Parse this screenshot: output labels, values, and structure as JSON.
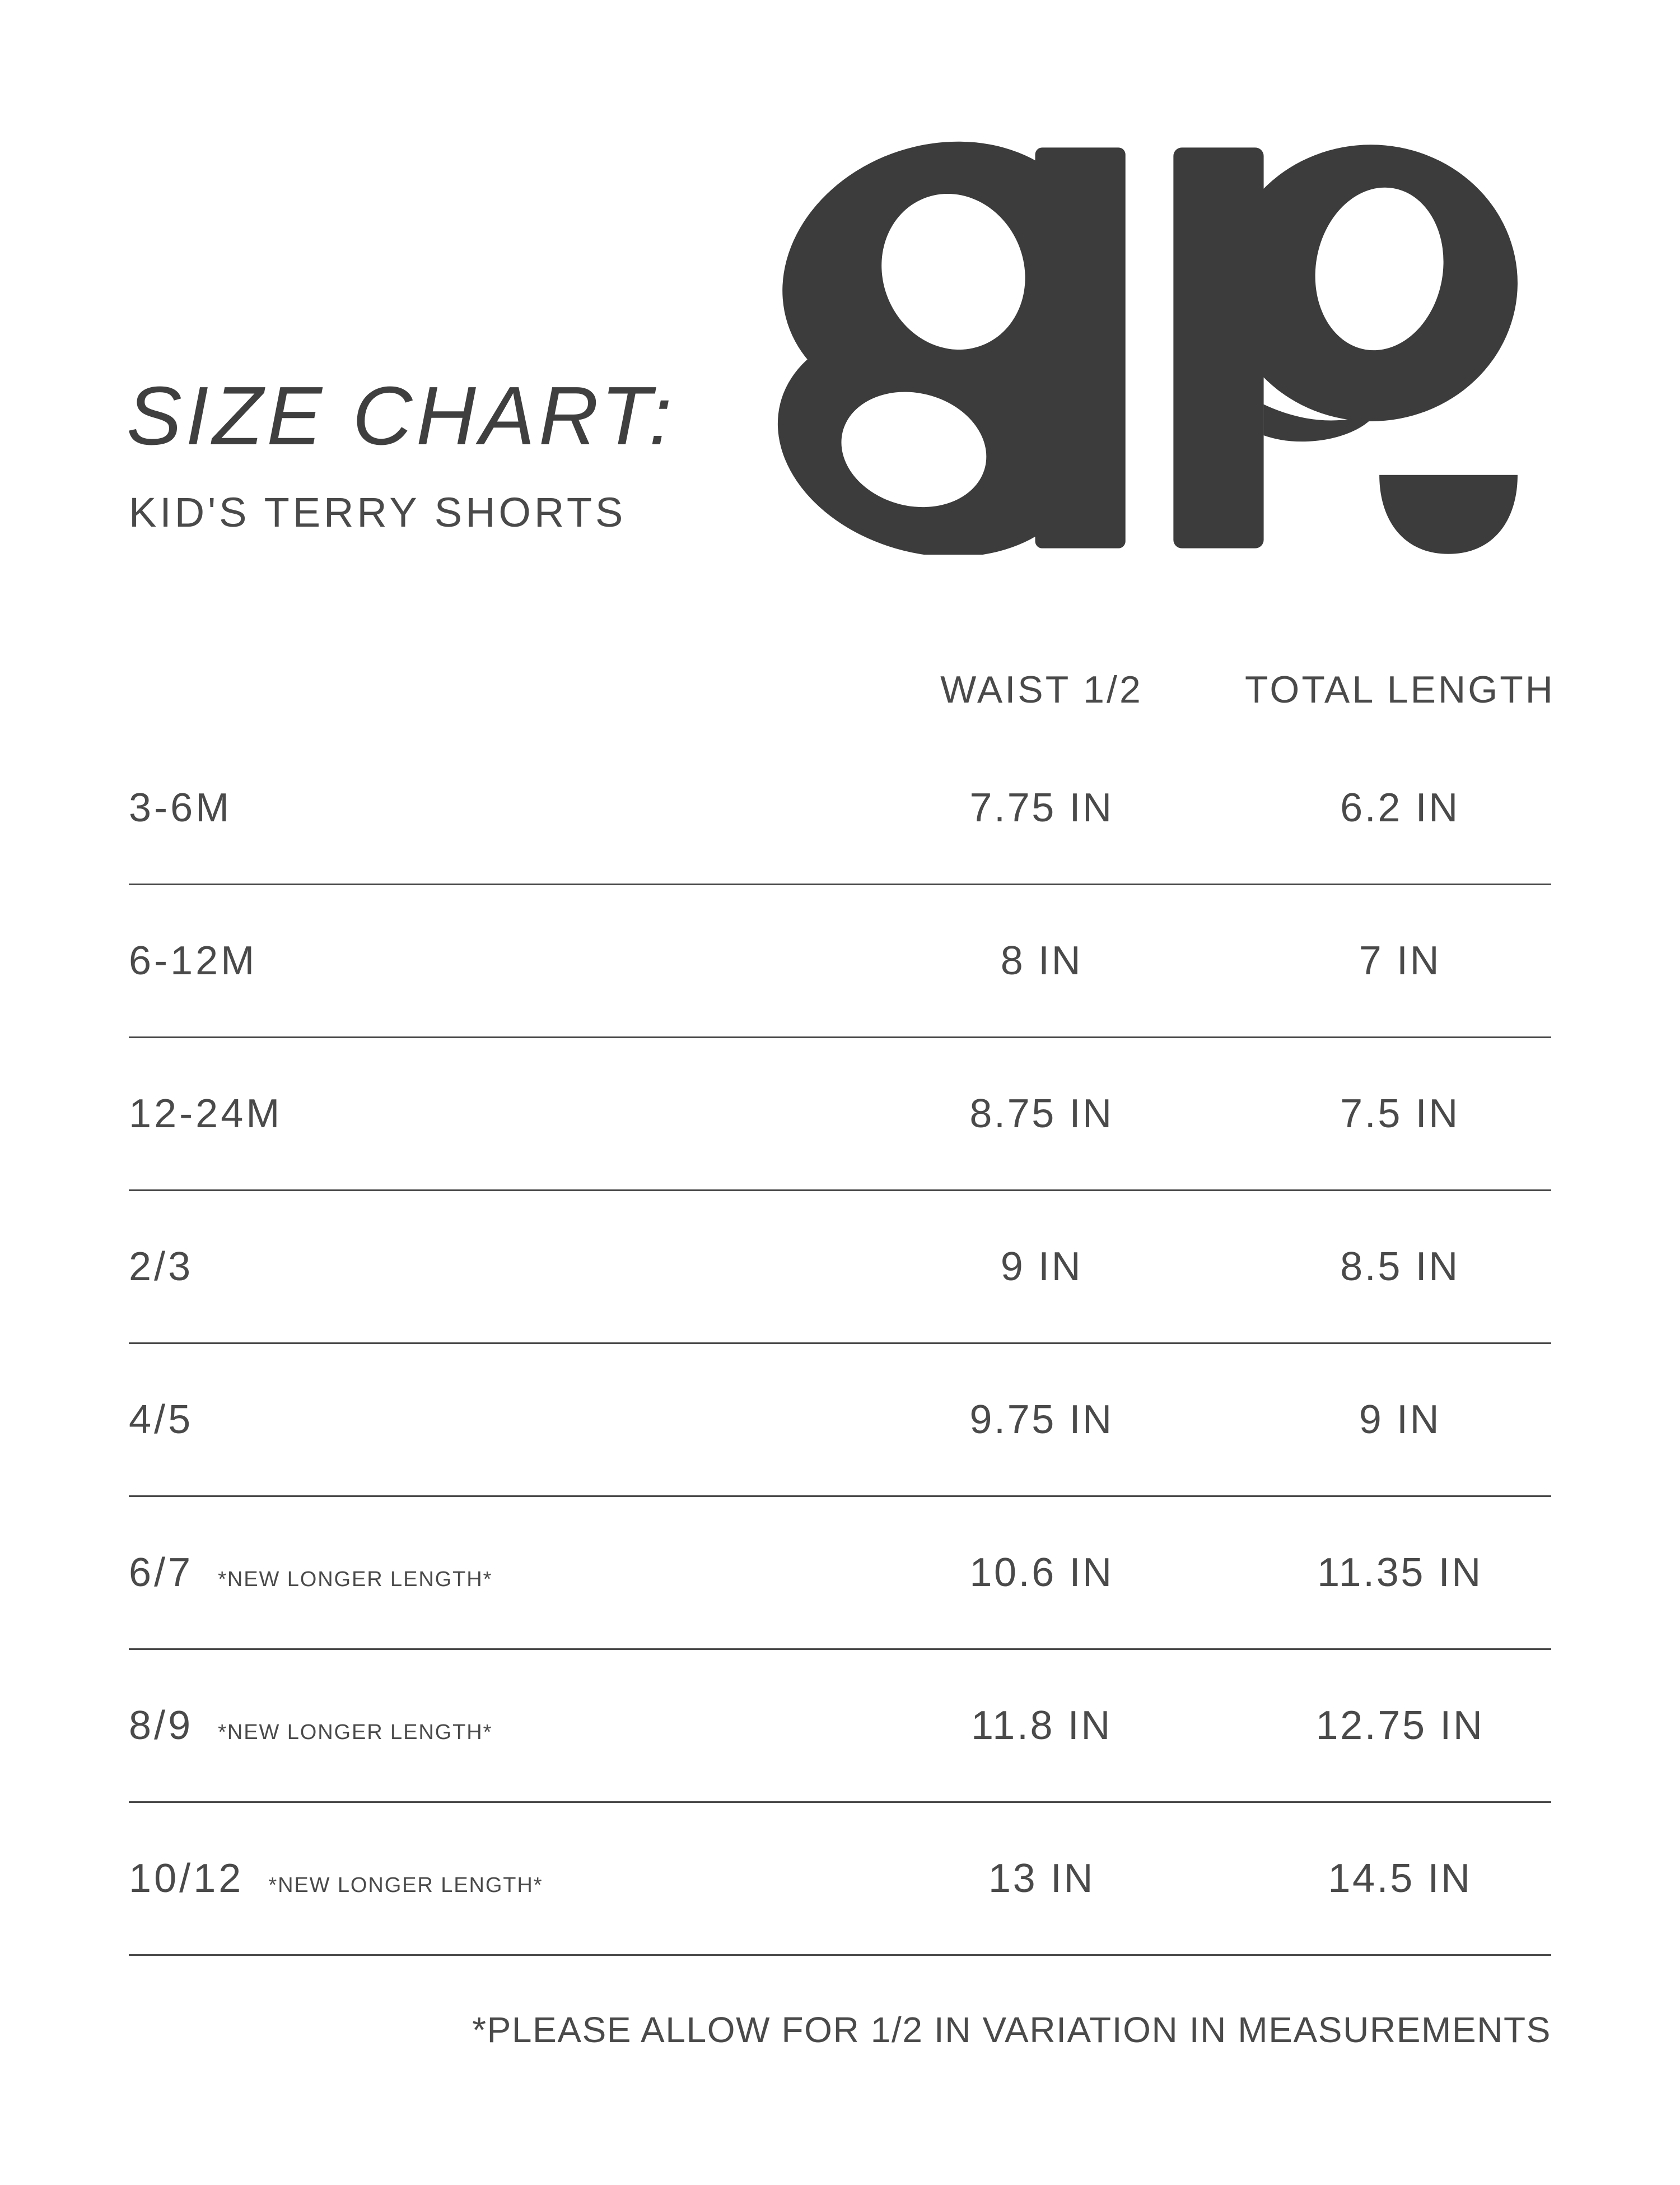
{
  "page": {
    "title": "SIZE CHART:",
    "subtitle": "KID'S TERRY SHORTS",
    "footnote": "*PLEASE ALLOW FOR 1/2 IN VARIATION IN MEASUREMENTS"
  },
  "logo": {
    "monogram": "ap",
    "color": "#3c3c3c"
  },
  "colors": {
    "background": "#ffffff",
    "text": "#4a4a4a",
    "title": "#3f3f3f",
    "divider": "#4a4a4a"
  },
  "table": {
    "columns": [
      "WAIST 1/2",
      "TOTAL LENGTH"
    ],
    "rows": [
      {
        "size": "3-6M",
        "note": "",
        "waist": "7.75 IN",
        "length": "6.2 IN"
      },
      {
        "size": "6-12M",
        "note": "",
        "waist": "8 IN",
        "length": "7 IN"
      },
      {
        "size": "12-24M",
        "note": "",
        "waist": "8.75 IN",
        "length": "7.5 IN"
      },
      {
        "size": "2/3",
        "note": "",
        "waist": "9 IN",
        "length": "8.5 IN"
      },
      {
        "size": "4/5",
        "note": "",
        "waist": "9.75 IN",
        "length": "9 IN"
      },
      {
        "size": "6/7",
        "note": "*NEW LONGER LENGTH*",
        "waist": "10.6 IN",
        "length": "11.35 IN"
      },
      {
        "size": "8/9",
        "note": "*NEW LONGER LENGTH*",
        "waist": "11.8 IN",
        "length": "12.75 IN"
      },
      {
        "size": "10/12",
        "note": "*NEW LONGER LENGTH*",
        "waist": "13 IN",
        "length": "14.5 IN"
      }
    ]
  }
}
